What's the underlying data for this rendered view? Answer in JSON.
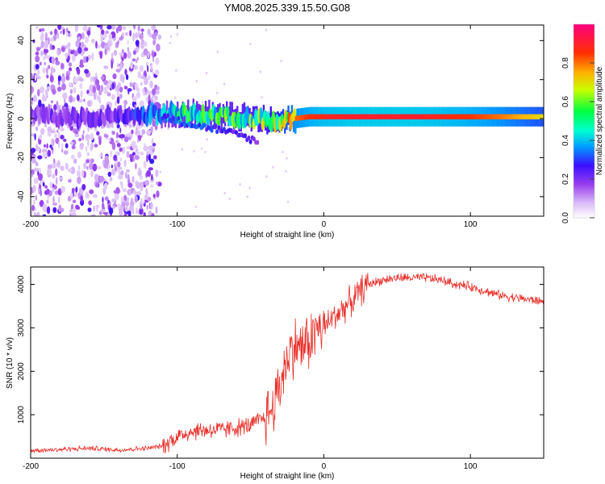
{
  "title": "YM08.2025.339.15.50.G08",
  "chart_data": [
    {
      "type": "heatmap",
      "name": "spectrogram",
      "xlabel": "Height of straight line (km)",
      "ylabel": "Frequency (Hz)",
      "xlim": [
        -200,
        150
      ],
      "ylim": [
        -50,
        48
      ],
      "xticks": [
        -200,
        -100,
        0,
        100
      ],
      "xtick_labels": [
        "-200",
        "-100",
        "0",
        "100"
      ],
      "yticks": [
        -40,
        -20,
        0,
        20,
        40
      ],
      "ytick_labels": [
        "-40",
        "-20",
        "0",
        "20",
        "40"
      ],
      "colorbar": {
        "label": "Normalized spectral amplitude",
        "range": [
          0,
          1
        ],
        "ticks": [
          0.0,
          0.2,
          0.4,
          0.6,
          0.8
        ],
        "tick_labels": [
          "0.0",
          "0.2",
          "0.4",
          "0.6",
          "0.8"
        ],
        "colors": [
          "#ffffff",
          "#c8a0f0",
          "#7000e0",
          "#0000ff",
          "#00ffff",
          "#00ff00",
          "#ffff00",
          "#ff8000",
          "#ff0000",
          "#ff00ff"
        ]
      },
      "ridge": {
        "x": [
          -200,
          -180,
          -160,
          -140,
          -120,
          -100,
          -80,
          -60,
          -40,
          -30,
          -20,
          -10,
          0,
          20,
          40,
          60,
          80,
          100,
          120,
          150
        ],
        "freq": [
          2,
          1,
          0,
          1,
          2,
          3,
          2,
          1,
          -1,
          -2,
          0,
          1,
          1,
          1,
          1,
          1,
          1,
          1,
          1,
          1
        ],
        "amplitude": [
          0.18,
          0.2,
          0.18,
          0.2,
          0.3,
          0.45,
          0.5,
          0.5,
          0.55,
          0.65,
          0.8,
          0.85,
          0.88,
          0.9,
          0.9,
          0.9,
          0.88,
          0.85,
          0.8,
          0.7
        ]
      },
      "secondary_ridge": {
        "x": [
          -110,
          -90,
          -70,
          -55,
          -45
        ],
        "freq": [
          1,
          -3,
          -6,
          -9,
          -12
        ],
        "amplitude": [
          0.3,
          0.3,
          0.25,
          0.25,
          0.2
        ]
      }
    },
    {
      "type": "line",
      "name": "snr",
      "xlabel": "Height of straight line (km)",
      "ylabel": "SNR (10 * v/v)",
      "xlim": [
        -200,
        150
      ],
      "ylim": [
        0,
        4400
      ],
      "xticks": [
        -200,
        -100,
        0,
        100
      ],
      "xtick_labels": [
        "-200",
        "-100",
        "0",
        "100"
      ],
      "yticks": [
        1000,
        2000,
        3000,
        4000
      ],
      "ytick_labels": [
        "1000",
        "2000",
        "3000",
        "4000"
      ],
      "color": "#e8302a",
      "series": [
        {
          "name": "SNR",
          "x": [
            -200,
            -180,
            -160,
            -140,
            -120,
            -110,
            -100,
            -90,
            -80,
            -70,
            -60,
            -50,
            -40,
            -35,
            -30,
            -25,
            -20,
            -15,
            -10,
            -5,
            0,
            5,
            10,
            15,
            20,
            25,
            30,
            40,
            50,
            60,
            70,
            80,
            90,
            100,
            110,
            120,
            130,
            140,
            150
          ],
          "y": [
            180,
            200,
            230,
            190,
            230,
            280,
            500,
            620,
            650,
            650,
            700,
            750,
            950,
            1150,
            1700,
            2300,
            2600,
            2550,
            2700,
            2950,
            3000,
            3200,
            3350,
            3500,
            3650,
            3850,
            4000,
            4100,
            4150,
            4150,
            4150,
            4100,
            4000,
            3950,
            3850,
            3750,
            3700,
            3650,
            3600
          ]
        }
      ]
    }
  ]
}
